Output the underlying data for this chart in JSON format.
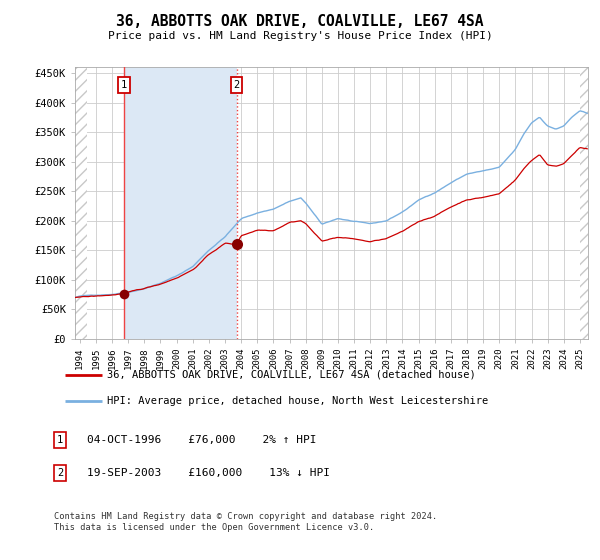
{
  "title": "36, ABBOTTS OAK DRIVE, COALVILLE, LE67 4SA",
  "subtitle": "Price paid vs. HM Land Registry's House Price Index (HPI)",
  "ylabel_ticks": [
    "£0",
    "£50K",
    "£100K",
    "£150K",
    "£200K",
    "£250K",
    "£300K",
    "£350K",
    "£400K",
    "£450K"
  ],
  "ytick_values": [
    0,
    50000,
    100000,
    150000,
    200000,
    250000,
    300000,
    350000,
    400000,
    450000
  ],
  "ylim": [
    0,
    460000
  ],
  "xlim_start": 1993.7,
  "xlim_end": 2025.5,
  "sale1_date": 1996.75,
  "sale1_price": 76000,
  "sale1_label": "1",
  "sale1_info": "04-OCT-1996    £76,000    2% ↑ HPI",
  "sale2_date": 2003.72,
  "sale2_price": 160000,
  "sale2_label": "2",
  "sale2_info": "19-SEP-2003    £160,000    13% ↓ HPI",
  "legend_line1": "36, ABBOTTS OAK DRIVE, COALVILLE, LE67 4SA (detached house)",
  "legend_line2": "HPI: Average price, detached house, North West Leicestershire",
  "footnote": "Contains HM Land Registry data © Crown copyright and database right 2024.\nThis data is licensed under the Open Government Licence v3.0.",
  "hpi_color": "#7ab0e0",
  "price_color": "#cc0000",
  "grid_color": "#cccccc",
  "sale_marker_color": "#880000",
  "vline_color": "#ee4444",
  "box_color": "#cc0000",
  "shade_color": "#dce8f5",
  "hatch_color": "#c8c8c8",
  "left_hatch_end": 1994.42,
  "right_hatch_start": 2025.0
}
